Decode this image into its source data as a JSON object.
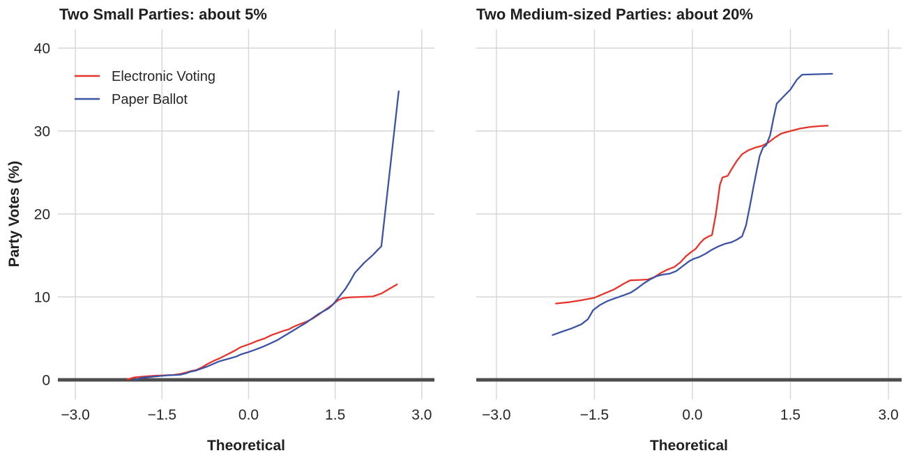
{
  "figure": {
    "colors": {
      "electronic": "#e6342a",
      "paper": "#3b53a5",
      "grid": "#d6d6d6",
      "zero_line": "#4d4d4d",
      "text": "#1f1f1f"
    },
    "y_axis": {
      "label": "Party Votes (%)",
      "ticks": [
        0,
        10,
        20,
        30,
        40
      ],
      "range": [
        0,
        40
      ]
    },
    "x_axis": {
      "label": "Theoretical",
      "ticks": [
        -3.0,
        -1.5,
        0.0,
        1.5,
        3.0
      ],
      "tick_labels": [
        "−3.0",
        "−1.5",
        "0.0",
        "1.5",
        "3.0"
      ],
      "range": [
        -3.26,
        3.26
      ]
    },
    "legend": {
      "items": [
        {
          "label": "Electronic Voting",
          "color_key": "electronic"
        },
        {
          "label": "Paper Ballot",
          "color_key": "paper"
        }
      ]
    }
  },
  "chart_data": [
    {
      "type": "line",
      "title": "Two Small Parties: about 5%",
      "xlabel": "Theoretical",
      "ylabel": "Party Votes (%)",
      "xlim": [
        -3.26,
        3.26
      ],
      "ylim": [
        0,
        40
      ],
      "grid": true,
      "legend_position": "top-left-inside",
      "series": [
        {
          "name": "Electronic Voting",
          "color_key": "electronic",
          "points": [
            [
              -2.1,
              0.05
            ],
            [
              -1.97,
              0.3
            ],
            [
              -1.8,
              0.4
            ],
            [
              -1.62,
              0.5
            ],
            [
              -1.45,
              0.55
            ],
            [
              -1.3,
              0.6
            ],
            [
              -1.2,
              0.7
            ],
            [
              -1.1,
              0.85
            ],
            [
              -1.0,
              1.05
            ],
            [
              -0.9,
              1.2
            ],
            [
              -0.8,
              1.55
            ],
            [
              -0.7,
              1.95
            ],
            [
              -0.6,
              2.3
            ],
            [
              -0.5,
              2.6
            ],
            [
              -0.4,
              2.95
            ],
            [
              -0.3,
              3.3
            ],
            [
              -0.22,
              3.6
            ],
            [
              -0.15,
              3.9
            ],
            [
              -0.05,
              4.15
            ],
            [
              0.05,
              4.4
            ],
            [
              0.15,
              4.7
            ],
            [
              0.28,
              5.0
            ],
            [
              0.4,
              5.4
            ],
            [
              0.5,
              5.65
            ],
            [
              0.6,
              5.9
            ],
            [
              0.7,
              6.1
            ],
            [
              0.78,
              6.4
            ],
            [
              0.88,
              6.7
            ],
            [
              1.0,
              7.0
            ],
            [
              1.1,
              7.35
            ],
            [
              1.2,
              7.8
            ],
            [
              1.3,
              8.3
            ],
            [
              1.4,
              8.8
            ],
            [
              1.48,
              9.2
            ],
            [
              1.55,
              9.6
            ],
            [
              1.63,
              9.85
            ],
            [
              1.75,
              9.95
            ],
            [
              1.95,
              10.0
            ],
            [
              2.15,
              10.05
            ],
            [
              2.3,
              10.4
            ],
            [
              2.42,
              10.9
            ],
            [
              2.57,
              11.5
            ]
          ]
        },
        {
          "name": "Paper Ballot",
          "color_key": "paper",
          "points": [
            [
              -1.98,
              0.0
            ],
            [
              -1.85,
              0.25
            ],
            [
              -1.7,
              0.35
            ],
            [
              -1.55,
              0.45
            ],
            [
              -1.4,
              0.55
            ],
            [
              -1.28,
              0.58
            ],
            [
              -1.18,
              0.62
            ],
            [
              -1.08,
              0.8
            ],
            [
              -1.0,
              1.0
            ],
            [
              -0.92,
              1.1
            ],
            [
              -0.82,
              1.35
            ],
            [
              -0.72,
              1.6
            ],
            [
              -0.62,
              1.9
            ],
            [
              -0.52,
              2.2
            ],
            [
              -0.42,
              2.4
            ],
            [
              -0.32,
              2.6
            ],
            [
              -0.22,
              2.8
            ],
            [
              -0.12,
              3.1
            ],
            [
              0.0,
              3.35
            ],
            [
              0.12,
              3.65
            ],
            [
              0.25,
              4.0
            ],
            [
              0.38,
              4.4
            ],
            [
              0.5,
              4.8
            ],
            [
              0.62,
              5.3
            ],
            [
              0.75,
              5.85
            ],
            [
              0.88,
              6.4
            ],
            [
              1.0,
              6.9
            ],
            [
              1.1,
              7.4
            ],
            [
              1.2,
              7.9
            ],
            [
              1.28,
              8.2
            ],
            [
              1.38,
              8.6
            ],
            [
              1.45,
              9.0
            ],
            [
              1.52,
              9.6
            ],
            [
              1.6,
              10.3
            ],
            [
              1.68,
              11.0
            ],
            [
              1.76,
              11.9
            ],
            [
              1.84,
              12.9
            ],
            [
              1.92,
              13.5
            ],
            [
              2.0,
              14.1
            ],
            [
              2.08,
              14.6
            ],
            [
              2.16,
              15.1
            ],
            [
              2.24,
              15.7
            ],
            [
              2.3,
              16.1
            ],
            [
              2.6,
              34.8
            ]
          ]
        }
      ]
    },
    {
      "type": "line",
      "title": "Two Medium-sized Parties: about 20%",
      "xlabel": "Theoretical",
      "ylabel": "Party Votes (%)",
      "xlim": [
        -3.26,
        3.26
      ],
      "ylim": [
        0,
        40
      ],
      "grid": true,
      "legend_position": "none",
      "series": [
        {
          "name": "Electronic Voting",
          "color_key": "electronic",
          "points": [
            [
              -2.09,
              9.2
            ],
            [
              -1.9,
              9.35
            ],
            [
              -1.7,
              9.6
            ],
            [
              -1.5,
              9.9
            ],
            [
              -1.35,
              10.4
            ],
            [
              -1.2,
              10.9
            ],
            [
              -1.05,
              11.6
            ],
            [
              -0.95,
              12.0
            ],
            [
              -0.8,
              12.05
            ],
            [
              -0.68,
              12.1
            ],
            [
              -0.58,
              12.4
            ],
            [
              -0.48,
              12.9
            ],
            [
              -0.38,
              13.3
            ],
            [
              -0.28,
              13.6
            ],
            [
              -0.18,
              14.2
            ],
            [
              -0.1,
              14.9
            ],
            [
              -0.02,
              15.4
            ],
            [
              0.05,
              15.8
            ],
            [
              0.12,
              16.5
            ],
            [
              0.18,
              17.0
            ],
            [
              0.25,
              17.3
            ],
            [
              0.3,
              17.45
            ],
            [
              0.36,
              20.0
            ],
            [
              0.42,
              23.5
            ],
            [
              0.46,
              24.4
            ],
            [
              0.54,
              24.6
            ],
            [
              0.6,
              25.4
            ],
            [
              0.68,
              26.4
            ],
            [
              0.76,
              27.2
            ],
            [
              0.86,
              27.7
            ],
            [
              0.96,
              28.0
            ],
            [
              1.06,
              28.2
            ],
            [
              1.16,
              28.6
            ],
            [
              1.26,
              29.2
            ],
            [
              1.36,
              29.7
            ],
            [
              1.5,
              30.0
            ],
            [
              1.65,
              30.3
            ],
            [
              1.8,
              30.5
            ],
            [
              1.95,
              30.6
            ],
            [
              2.07,
              30.65
            ]
          ]
        },
        {
          "name": "Paper Ballot",
          "color_key": "paper",
          "points": [
            [
              -2.14,
              5.4
            ],
            [
              -2.0,
              5.8
            ],
            [
              -1.85,
              6.2
            ],
            [
              -1.7,
              6.7
            ],
            [
              -1.6,
              7.3
            ],
            [
              -1.52,
              8.4
            ],
            [
              -1.42,
              9.0
            ],
            [
              -1.3,
              9.5
            ],
            [
              -1.18,
              9.85
            ],
            [
              -1.05,
              10.2
            ],
            [
              -0.95,
              10.5
            ],
            [
              -0.85,
              11.0
            ],
            [
              -0.75,
              11.6
            ],
            [
              -0.65,
              12.1
            ],
            [
              -0.55,
              12.5
            ],
            [
              -0.45,
              12.7
            ],
            [
              -0.35,
              12.8
            ],
            [
              -0.25,
              13.1
            ],
            [
              -0.15,
              13.7
            ],
            [
              -0.05,
              14.3
            ],
            [
              0.02,
              14.6
            ],
            [
              0.1,
              14.8
            ],
            [
              0.2,
              15.2
            ],
            [
              0.3,
              15.7
            ],
            [
              0.4,
              16.1
            ],
            [
              0.5,
              16.4
            ],
            [
              0.6,
              16.6
            ],
            [
              0.68,
              16.9
            ],
            [
              0.76,
              17.3
            ],
            [
              0.82,
              18.6
            ],
            [
              0.88,
              21.0
            ],
            [
              0.94,
              23.5
            ],
            [
              0.99,
              25.5
            ],
            [
              1.03,
              27.0
            ],
            [
              1.08,
              28.0
            ],
            [
              1.13,
              28.3
            ],
            [
              1.19,
              29.5
            ],
            [
              1.24,
              31.5
            ],
            [
              1.29,
              33.3
            ],
            [
              1.4,
              34.2
            ],
            [
              1.5,
              35.0
            ],
            [
              1.6,
              36.2
            ],
            [
              1.68,
              36.8
            ],
            [
              1.9,
              36.85
            ],
            [
              2.14,
              36.9
            ]
          ]
        }
      ]
    }
  ]
}
